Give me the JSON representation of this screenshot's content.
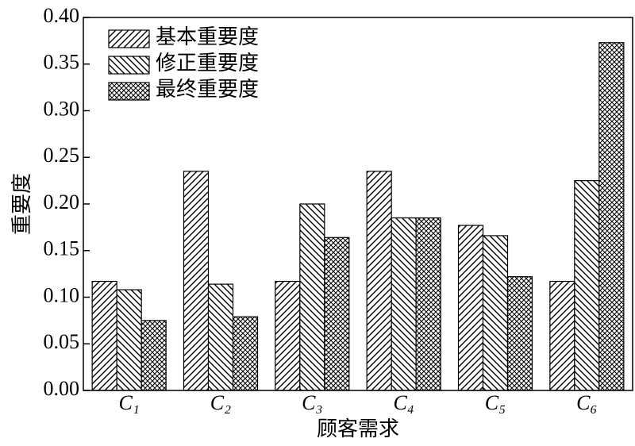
{
  "chart_data": {
    "type": "bar",
    "x_label": "顾客需求",
    "y_label": "重要度",
    "categories": [
      "C₁",
      "C₂",
      "C₃",
      "C₄",
      "C₅",
      "C₆"
    ],
    "series": [
      {
        "name": "基本重要度",
        "color": "#000000",
        "hatch": "/",
        "values": [
          0.117,
          0.235,
          0.117,
          0.235,
          0.177,
          0.117
        ]
      },
      {
        "name": "修正重要度",
        "color": "#000000",
        "hatch": "\\",
        "values": [
          0.108,
          0.114,
          0.2,
          0.185,
          0.166,
          0.225
        ]
      },
      {
        "name": "最终重要度",
        "color": "#000000",
        "hatch": "x",
        "values": [
          0.075,
          0.079,
          0.164,
          0.185,
          0.122,
          0.373
        ]
      }
    ],
    "ylim": [
      0,
      0.4
    ],
    "yticks": [
      {
        "value": 0,
        "label": "0.00"
      },
      {
        "value": 0.05,
        "label": "0.05"
      },
      {
        "value": 0.1,
        "label": "0.10"
      },
      {
        "value": 0.15,
        "label": "0.15"
      },
      {
        "value": 0.2,
        "label": "0.20"
      },
      {
        "value": 0.25,
        "label": "0.25"
      },
      {
        "value": 0.3,
        "label": "0.30"
      },
      {
        "value": 0.35,
        "label": "0.35"
      },
      {
        "value": 0.4,
        "label": "0.40"
      }
    ],
    "legend": "upper-left",
    "grid": false
  }
}
